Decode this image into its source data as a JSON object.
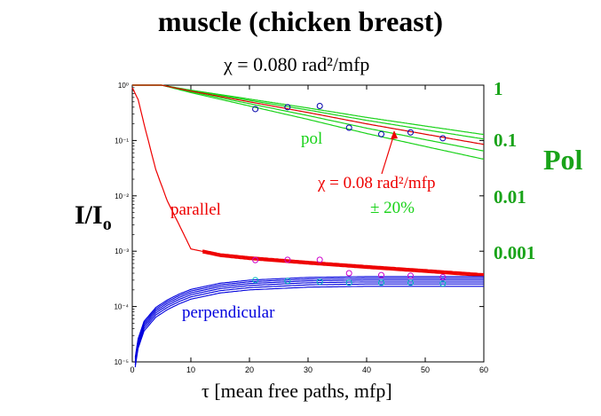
{
  "title": "muscle (chicken breast)",
  "subtitle": "χ = 0.080 rad²/mfp",
  "y_axis_label": "I/I",
  "y_axis_label_sub": "o",
  "right_axis_label": "Pol",
  "x_axis_label": "τ  [mean free  paths, mfp]",
  "colors": {
    "parallel": "#ee0000",
    "perpendicular": "#0000dd",
    "pol": "#19d219",
    "pol_fit": "#dd0000",
    "right_axis": "#19a319",
    "data_parallel": "#cc00cc",
    "data_perp": "#00bbbb",
    "data_pol": "#0000aa"
  },
  "chart_data": {
    "type": "line",
    "xlim": [
      0,
      60
    ],
    "ylim_log10": [
      -5,
      0
    ],
    "x_ticks": [
      "0",
      "10",
      "20",
      "30",
      "40",
      "50",
      "60"
    ],
    "y_ticks": [
      "10⁰",
      "10⁻¹",
      "10⁻²",
      "10⁻³",
      "10⁻⁴",
      "10⁻⁵"
    ],
    "right_ticks": [
      "1",
      "0.1",
      "0.01",
      "0.001"
    ],
    "annotations": {
      "pol": "pol",
      "parallel": "parallel",
      "perpendicular": "perpendicular",
      "fit": "χ = 0.08 rad²/mfp",
      "range": "± 20%"
    },
    "series": [
      {
        "name": "parallel",
        "x": [
          0,
          1,
          2,
          4,
          6,
          8,
          10,
          15,
          20,
          30,
          40,
          50,
          60
        ],
        "y": [
          0.9,
          0.55,
          0.2,
          0.03,
          0.008,
          0.003,
          0.0011,
          0.00085,
          0.00075,
          0.00062,
          0.00052,
          0.00044,
          0.00037
        ]
      },
      {
        "name": "perpendicular",
        "x": [
          0.5,
          1,
          2,
          4,
          6,
          8,
          10,
          15,
          20,
          30,
          40,
          50,
          60
        ],
        "y": [
          1e-05,
          2.2e-05,
          4.5e-05,
          8e-05,
          0.00011,
          0.00014,
          0.00017,
          0.00022,
          0.00025,
          0.00028,
          0.00029,
          0.00029,
          0.00029
        ]
      },
      {
        "name": "pol",
        "x": [
          0,
          5,
          10,
          20,
          30,
          40,
          50,
          60
        ],
        "y": [
          1,
          1,
          0.78,
          0.5,
          0.32,
          0.2,
          0.13,
          0.085
        ]
      }
    ],
    "data_points": {
      "parallel": {
        "x": [
          21,
          26.5,
          32,
          37,
          42.5,
          47.5,
          53
        ],
        "y": [
          0.00069,
          0.0007,
          0.0007,
          0.0004,
          0.00037,
          0.00036,
          0.00034
        ]
      },
      "perpendicular": {
        "x": [
          21,
          26.5,
          32,
          37,
          42.5,
          47.5,
          53
        ],
        "y": [
          0.0003,
          0.00029,
          0.00028,
          0.00027,
          0.00027,
          0.00027,
          0.00026
        ]
      },
      "pol": {
        "x": [
          21,
          26.5,
          32,
          37,
          42.5,
          47.5,
          53
        ],
        "y": [
          0.37,
          0.4,
          0.42,
          0.17,
          0.13,
          0.14,
          0.11
        ]
      }
    }
  }
}
